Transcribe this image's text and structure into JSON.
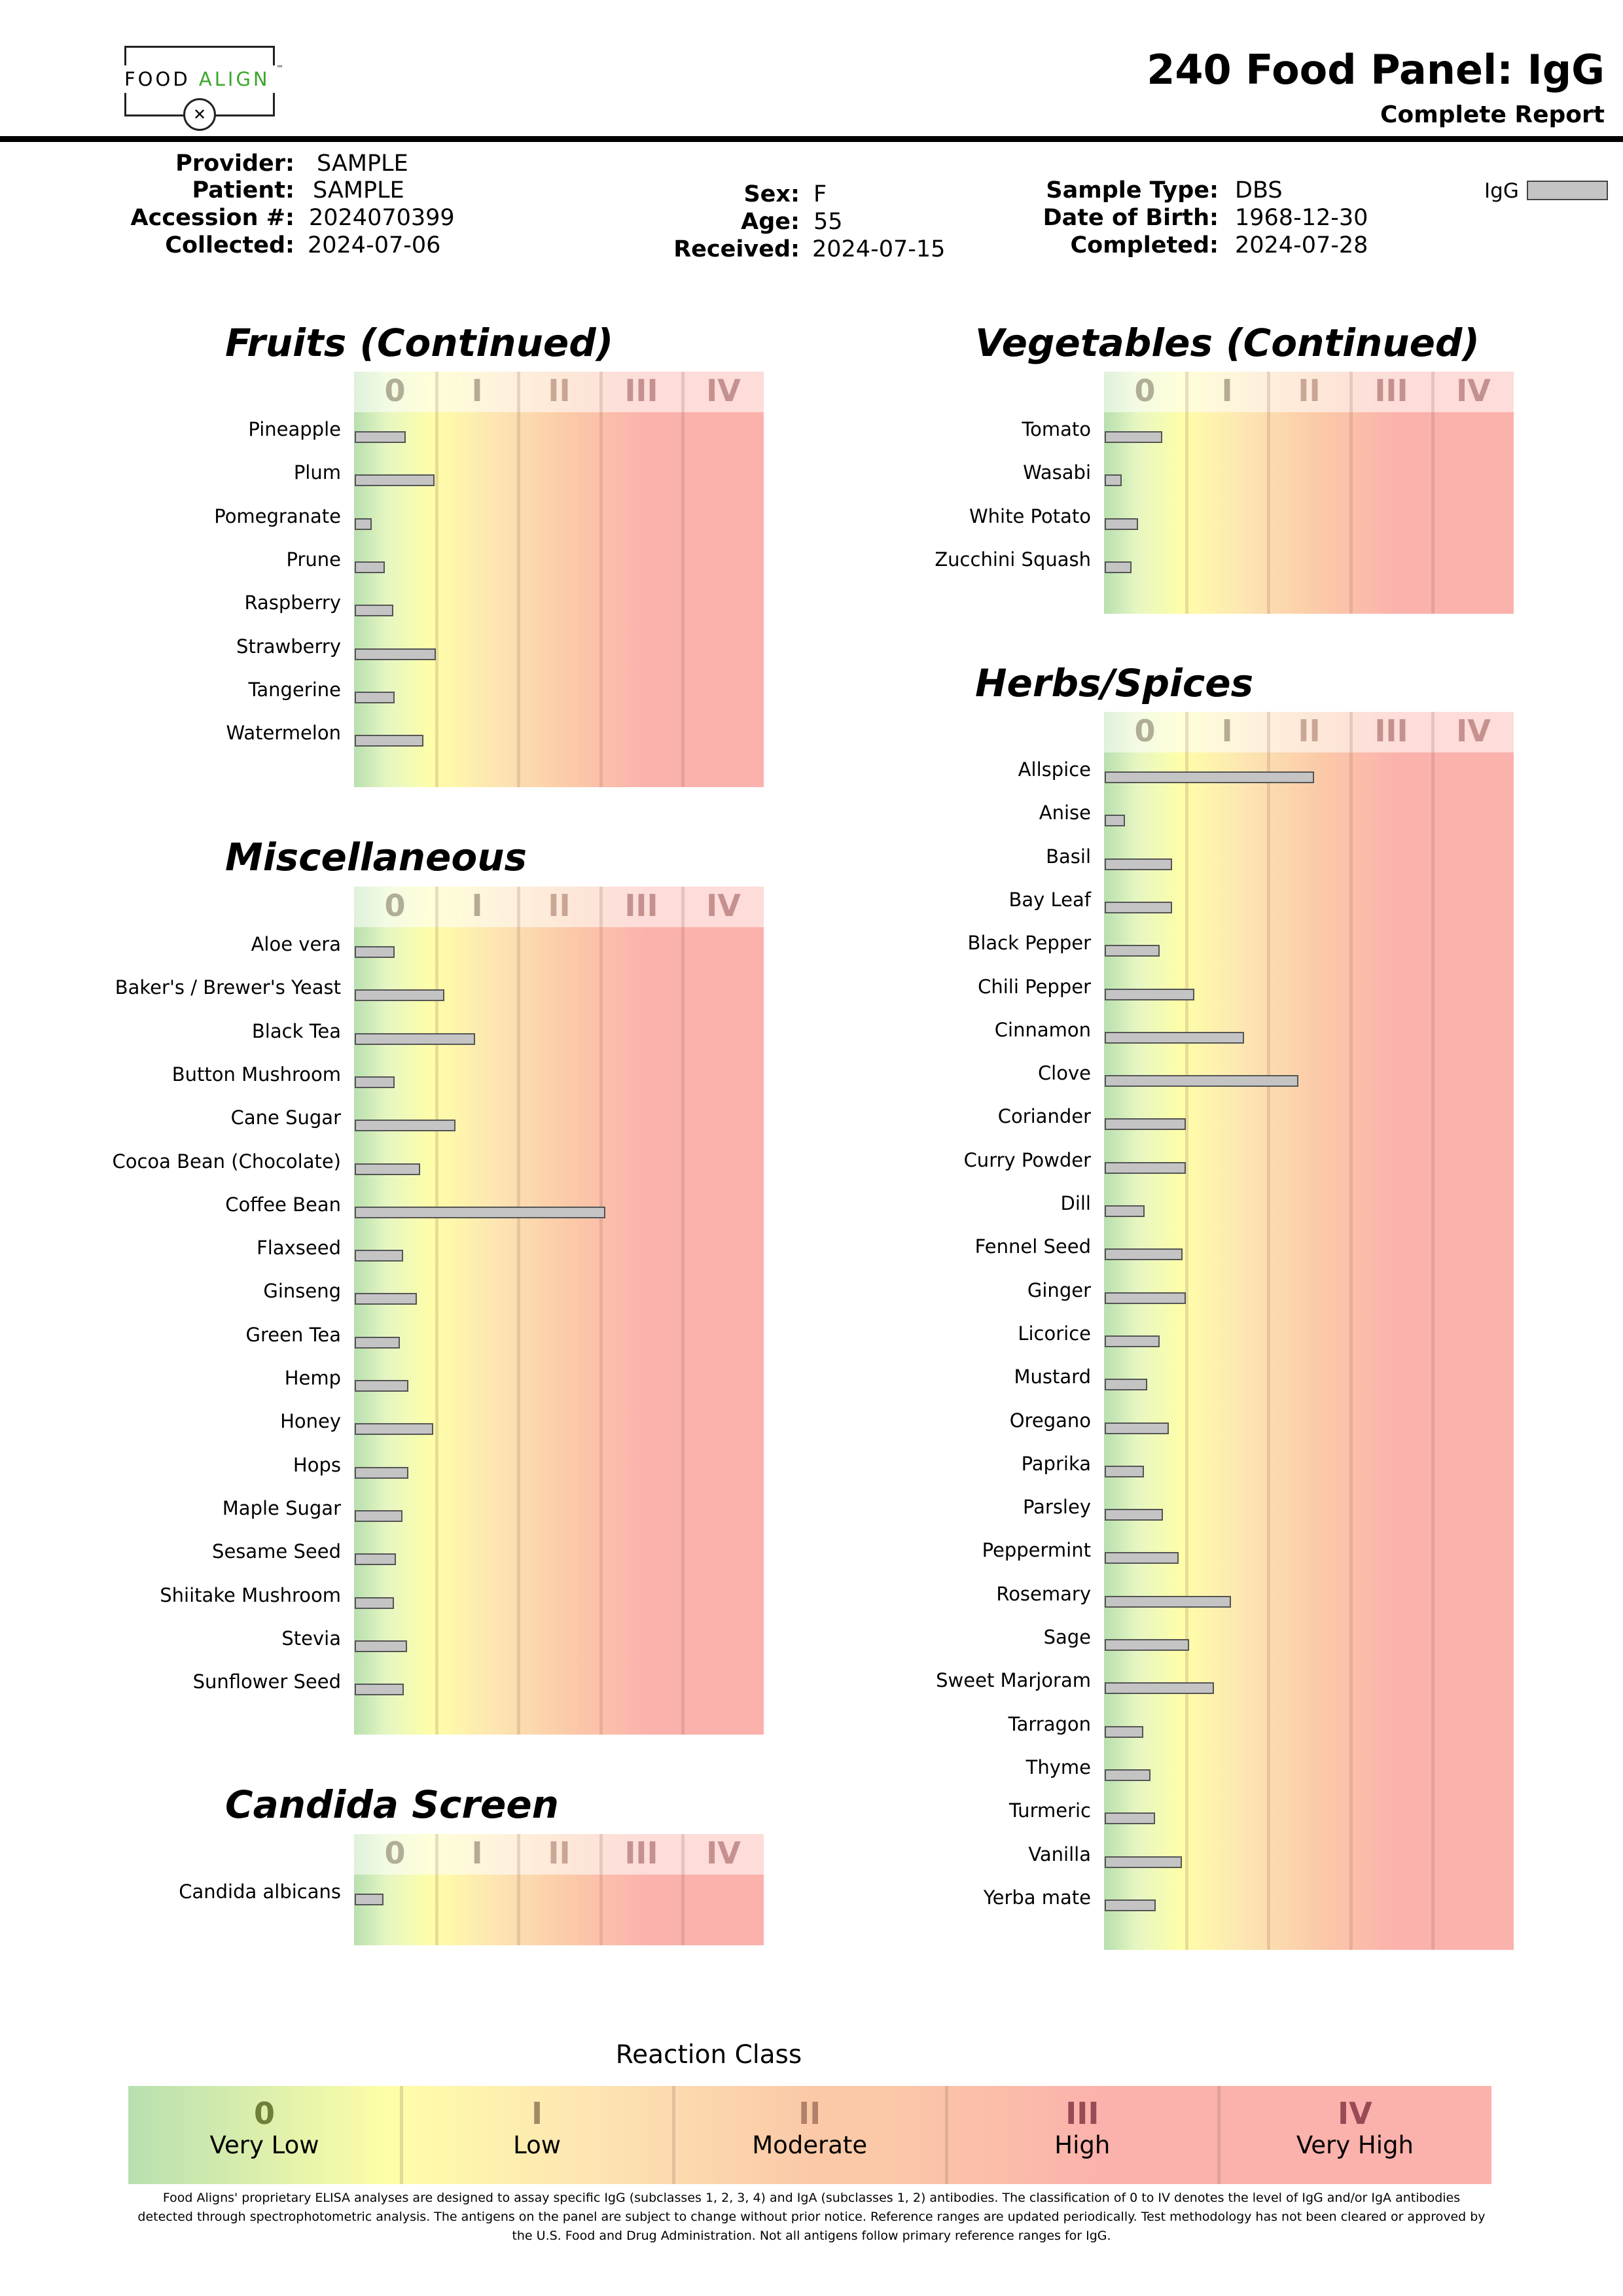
{
  "brand": {
    "word1": "FOOD",
    "word2": "ALIGN",
    "tm": "™",
    "icon": "fork-knife-icon",
    "accent": "#3aa62c"
  },
  "report": {
    "title": "240 Food Panel: IgG",
    "subtitle": "Complete Report"
  },
  "info": {
    "provider_label": "Provider:",
    "provider": "SAMPLE",
    "patient_label": "Patient:",
    "patient": "SAMPLE",
    "accession_label": "Accession #:",
    "accession": "2024070399",
    "collected_label": "Collected:",
    "collected": "2024-07-06",
    "sex_label": "Sex:",
    "sex": "F",
    "age_label": "Age:",
    "age": "55",
    "received_label": "Received:",
    "received": "2024-07-15",
    "sample_type_label": "Sample Type:",
    "sample_type": "DBS",
    "dob_label": "Date of Birth:",
    "dob": "1968-12-30",
    "completed_label": "Completed:",
    "completed": "2024-07-28",
    "legend_label": "IgG"
  },
  "class_labels": [
    "0",
    "I",
    "II",
    "III",
    "IV"
  ],
  "panels": {
    "fruits": {
      "title": "Fruits (Continued)",
      "items": [
        {
          "name": "Pineapple",
          "value": 0.62
        },
        {
          "name": "Plum",
          "value": 0.97
        },
        {
          "name": "Pomegranate",
          "value": 0.21
        },
        {
          "name": "Prune",
          "value": 0.37
        },
        {
          "name": "Raspberry",
          "value": 0.47
        },
        {
          "name": "Strawberry",
          "value": 0.99
        },
        {
          "name": "Tangerine",
          "value": 0.49
        },
        {
          "name": "Watermelon",
          "value": 0.84
        }
      ]
    },
    "misc": {
      "title": "Miscellaneous",
      "items": [
        {
          "name": "Aloe vera",
          "value": 0.49
        },
        {
          "name": "Baker's / Brewer's Yeast",
          "value": 1.09
        },
        {
          "name": "Black Tea",
          "value": 1.47
        },
        {
          "name": "Button Mushroom",
          "value": 0.49
        },
        {
          "name": "Cane Sugar",
          "value": 1.23
        },
        {
          "name": "Cocoa Bean (Chocolate)",
          "value": 0.8
        },
        {
          "name": "Coffee Bean",
          "value": 3.05
        },
        {
          "name": "Flaxseed",
          "value": 0.59
        },
        {
          "name": "Ginseng",
          "value": 0.76
        },
        {
          "name": "Green Tea",
          "value": 0.55
        },
        {
          "name": "Hemp",
          "value": 0.65
        },
        {
          "name": "Honey",
          "value": 0.96
        },
        {
          "name": "Hops",
          "value": 0.65
        },
        {
          "name": "Maple Sugar",
          "value": 0.58
        },
        {
          "name": "Sesame Seed",
          "value": 0.5
        },
        {
          "name": "Shiitake Mushroom",
          "value": 0.48
        },
        {
          "name": "Stevia",
          "value": 0.64
        },
        {
          "name": "Sunflower Seed",
          "value": 0.6
        }
      ]
    },
    "candida": {
      "title": "Candida Screen",
      "items": [
        {
          "name": "Candida albicans",
          "value": 0.35
        }
      ]
    },
    "vegetables": {
      "title": "Vegetables (Continued)",
      "items": [
        {
          "name": "Tomato",
          "value": 0.7
        },
        {
          "name": "Wasabi",
          "value": 0.21
        },
        {
          "name": "White Potato",
          "value": 0.41
        },
        {
          "name": "Zucchini Squash",
          "value": 0.33
        }
      ]
    },
    "herbs": {
      "title": "Herbs/Spices",
      "items": [
        {
          "name": "Allspice",
          "value": 2.55
        },
        {
          "name": "Anise",
          "value": 0.25
        },
        {
          "name": "Basil",
          "value": 0.82
        },
        {
          "name": "Bay Leaf",
          "value": 0.82
        },
        {
          "name": "Black Pepper",
          "value": 0.67
        },
        {
          "name": "Chili Pepper",
          "value": 1.09
        },
        {
          "name": "Cinnamon",
          "value": 1.7
        },
        {
          "name": "Clove",
          "value": 2.36
        },
        {
          "name": "Coriander",
          "value": 0.99
        },
        {
          "name": "Curry Powder",
          "value": 0.99
        },
        {
          "name": "Dill",
          "value": 0.49
        },
        {
          "name": "Fennel Seed",
          "value": 0.95
        },
        {
          "name": "Ginger",
          "value": 0.99
        },
        {
          "name": "Licorice",
          "value": 0.67
        },
        {
          "name": "Mustard",
          "value": 0.52
        },
        {
          "name": "Oregano",
          "value": 0.78
        },
        {
          "name": "Paprika",
          "value": 0.48
        },
        {
          "name": "Parsley",
          "value": 0.71
        },
        {
          "name": "Peppermint",
          "value": 0.9
        },
        {
          "name": "Rosemary",
          "value": 1.54
        },
        {
          "name": "Sage",
          "value": 1.03
        },
        {
          "name": "Sweet Marjoram",
          "value": 1.33
        },
        {
          "name": "Tarragon",
          "value": 0.47
        },
        {
          "name": "Thyme",
          "value": 0.56
        },
        {
          "name": "Turmeric",
          "value": 0.61
        },
        {
          "name": "Vanilla",
          "value": 0.94
        },
        {
          "name": "Yerba mate",
          "value": 0.62
        }
      ]
    }
  },
  "reaction_class": {
    "title": "Reaction Class",
    "classes": [
      {
        "num": "0",
        "name": "Very Low",
        "color": "#6f7f3a"
      },
      {
        "num": "I",
        "name": "Low",
        "color": "#a08a66"
      },
      {
        "num": "II",
        "name": "Moderate",
        "color": "#b0806a"
      },
      {
        "num": "III",
        "name": "High",
        "color": "#9a4a55"
      },
      {
        "num": "IV",
        "name": "Very High",
        "color": "#9a4a55"
      }
    ]
  },
  "disclaimer": "Food Aligns' proprietary ELISA analyses are designed to assay specific IgG (subclasses 1, 2, 3, 4) and IgA (subclasses 1, 2) antibodies. The classification of 0 to IV denotes the level of IgG and/or IgA antibodies detected through spectrophotometric analysis. The antigens on the panel are subject to change without prior notice. Reference ranges are updated periodically. Test methodology has not been cleared or approved by the U.S. Food and Drug Administration. Not all antigens follow primary reference ranges for IgG."
}
